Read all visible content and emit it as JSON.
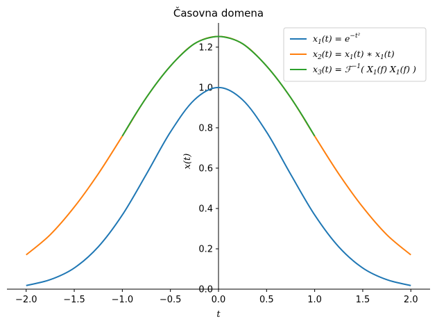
{
  "chart_data": {
    "type": "line",
    "title": "Časovna domena",
    "xlabel": "t",
    "ylabel": "x(t)",
    "xlim": [
      -2.2,
      2.2
    ],
    "ylim": [
      0.0,
      1.32
    ],
    "xticks": [
      "−2.0",
      "−1.5",
      "−1.0",
      "−0.5",
      "0.0",
      "0.5",
      "1.0",
      "1.5",
      "2.0"
    ],
    "xtick_values": [
      -2.0,
      -1.5,
      -1.0,
      -0.5,
      0.0,
      0.5,
      1.0,
      1.5,
      2.0
    ],
    "yticks": [
      "0.0",
      "0.2",
      "0.4",
      "0.6",
      "0.8",
      "1.0",
      "1.2"
    ],
    "ytick_values": [
      0.0,
      0.2,
      0.4,
      0.6,
      0.8,
      1.0,
      1.2
    ],
    "grid": false,
    "legend_position": "top-right",
    "series": [
      {
        "name": "x₁(t) = e^(−t²)",
        "color": "#1f77b4",
        "x": [
          -2.0,
          -1.75,
          -1.5,
          -1.25,
          -1.0,
          -0.75,
          -0.5,
          -0.25,
          0.0,
          0.25,
          0.5,
          0.75,
          1.0,
          1.25,
          1.5,
          1.75,
          2.0
        ],
        "y": [
          0.018,
          0.047,
          0.105,
          0.21,
          0.368,
          0.57,
          0.779,
          0.939,
          1.0,
          0.939,
          0.779,
          0.57,
          0.368,
          0.21,
          0.105,
          0.047,
          0.018
        ]
      },
      {
        "name": "x₂(t) = x₁(t) ∗ x₁(t)",
        "color": "#ff7f0e",
        "x": [
          -2.0,
          -1.75,
          -1.5,
          -1.25,
          -1.0,
          -0.75,
          -0.5,
          -0.25,
          0.0,
          0.25,
          0.5,
          0.75,
          1.0,
          1.25,
          1.5,
          1.75,
          2.0
        ],
        "y": [
          0.17,
          0.27,
          0.407,
          0.572,
          0.759,
          0.95,
          1.106,
          1.217,
          1.253,
          1.217,
          1.106,
          0.95,
          0.759,
          0.572,
          0.407,
          0.27,
          0.17
        ]
      },
      {
        "name": "x₃(t) = ℱ⁻¹( X₁(f) X₁(f) )",
        "color": "#2ca02c",
        "x": [
          -1.0,
          -0.875,
          -0.75,
          -0.625,
          -0.5,
          -0.375,
          -0.25,
          -0.125,
          0.0,
          0.125,
          0.25,
          0.375,
          0.5,
          0.625,
          0.75,
          0.875,
          1.0
        ],
        "y": [
          0.759,
          0.858,
          0.95,
          1.033,
          1.106,
          1.168,
          1.217,
          1.243,
          1.253,
          1.243,
          1.217,
          1.168,
          1.106,
          1.033,
          0.95,
          0.858,
          0.759
        ]
      }
    ],
    "legend": {
      "entries": [
        {
          "main": "x",
          "sub": "1",
          "rest": "(t) = e",
          "sup": "−t²"
        },
        {
          "main": "x",
          "sub": "2",
          "rest": "(t) = x",
          "sub2": "1",
          "rest2": "(t) ∗ x",
          "sub3": "1",
          "rest3": "(t)"
        },
        {
          "main": "x",
          "sub": "3",
          "rest": "(t) = ℱ",
          "sup": "−1",
          "rest2": "( X",
          "sub2": "1",
          "rest3": "(f) X",
          "sub3": "1",
          "rest4": "(f) )"
        }
      ]
    }
  }
}
